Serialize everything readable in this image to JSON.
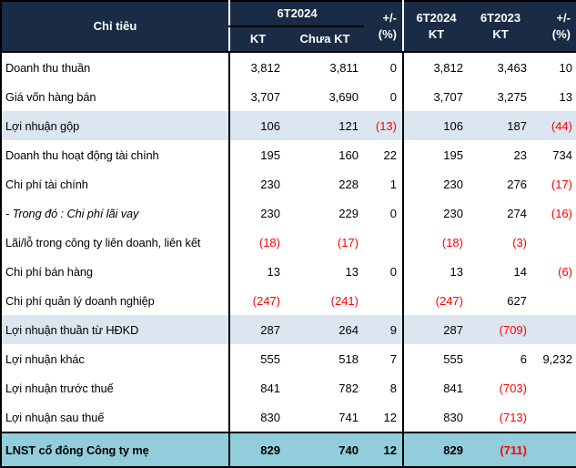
{
  "colors": {
    "header_bg": "#192B45",
    "header_text": "#FFFFFF",
    "highlight_bg": "#DCE6F1",
    "total_bg": "#92CDDC",
    "negative": "#FF0000",
    "text": "#000000"
  },
  "chart_data": {
    "type": "table",
    "negative_format": "parentheses shown in red",
    "header": {
      "criteria": "Chỉ tiêu",
      "group1": {
        "title": "6T2024",
        "sub1": "KT",
        "sub2": "Chưa KT",
        "pct": "+/- (%)"
      },
      "group2": {
        "col1_line1": "6T2024",
        "col1_line2": "KT",
        "col2_line1": "6T2023",
        "col2_line2": "KT",
        "pct": "+/- (%)"
      }
    },
    "rows": [
      {
        "label": "Doanh thu thuần",
        "style": "normal",
        "values": [
          "3,812",
          "3,811",
          "0",
          "3,812",
          "3,463",
          "10"
        ]
      },
      {
        "label": "Giá vốn hàng bán",
        "style": "normal",
        "values": [
          "3,707",
          "3,690",
          "0",
          "3,707",
          "3,275",
          "13"
        ]
      },
      {
        "label": "Lợi nhuận gộp",
        "style": "highlight",
        "values": [
          "106",
          "121",
          "(13)",
          "106",
          "187",
          "(44)"
        ]
      },
      {
        "label": "Doanh thu hoạt động tài chính",
        "style": "normal",
        "values": [
          "195",
          "160",
          "22",
          "195",
          "23",
          "734"
        ]
      },
      {
        "label": "Chi phí tài chính",
        "style": "normal",
        "values": [
          "230",
          "228",
          "1",
          "230",
          "276",
          "(17)"
        ]
      },
      {
        "label": "- Trong đó : Chi phí lãi vay",
        "style": "italic",
        "values": [
          "230",
          "229",
          "0",
          "230",
          "274",
          "(16)"
        ]
      },
      {
        "label": "Lãi/lỗ trong công ty liên doanh, liên kết",
        "style": "normal",
        "values": [
          "(18)",
          "(17)",
          "",
          "(18)",
          "(3)",
          ""
        ]
      },
      {
        "label": "Chi phí bán hàng",
        "style": "normal",
        "values": [
          "13",
          "13",
          "0",
          "13",
          "14",
          "(6)"
        ]
      },
      {
        "label": "Chi phí quản lý doanh nghiệp",
        "style": "normal",
        "values": [
          "(247)",
          "(241)",
          "",
          "(247)",
          "627",
          ""
        ]
      },
      {
        "label": "Lợi nhuận thuần từ HĐKD",
        "style": "highlight",
        "values": [
          "287",
          "264",
          "9",
          "287",
          "(709)",
          ""
        ]
      },
      {
        "label": "Lợi nhuận khác",
        "style": "normal",
        "values": [
          "555",
          "518",
          "7",
          "555",
          "6",
          "9,232"
        ]
      },
      {
        "label": "Lợi nhuận trước thuế",
        "style": "normal",
        "values": [
          "841",
          "782",
          "8",
          "841",
          "(703)",
          ""
        ]
      },
      {
        "label": "Lợi nhuận sau thuế",
        "style": "normal",
        "values": [
          "830",
          "741",
          "12",
          "830",
          "(713)",
          ""
        ]
      },
      {
        "label": "LNST cổ đông Công ty mẹ",
        "style": "total",
        "values": [
          "829",
          "740",
          "12",
          "829",
          "(711)",
          ""
        ]
      }
    ]
  }
}
